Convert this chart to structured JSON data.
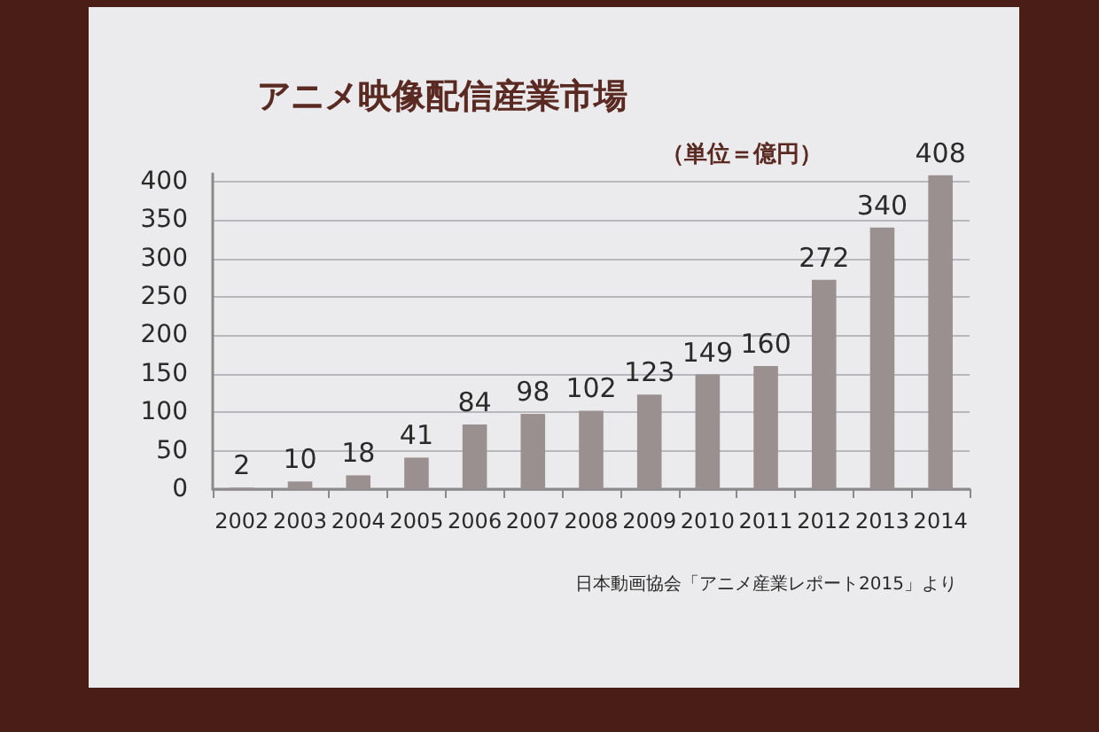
{
  "chart_data": {
    "type": "bar",
    "title": "アニメ映像配信産業市場",
    "subtitle": "（単位＝億円）",
    "annotations": [
      "日本動画協会「アニメ産業レポート2015」より"
    ],
    "categories": [
      "2002",
      "2003",
      "2004",
      "2005",
      "2006",
      "2007",
      "2008",
      "2009",
      "2010",
      "2011",
      "2012",
      "2013",
      "2014"
    ],
    "values": [
      2,
      10,
      18,
      41,
      84,
      98,
      102,
      123,
      149,
      160,
      272,
      340,
      408
    ],
    "color": "#9b9090",
    "ylim": [
      0,
      410
    ],
    "yticks": [
      0,
      50,
      100,
      150,
      200,
      250,
      300,
      350,
      400
    ],
    "grid": "y",
    "data_labels": true
  }
}
